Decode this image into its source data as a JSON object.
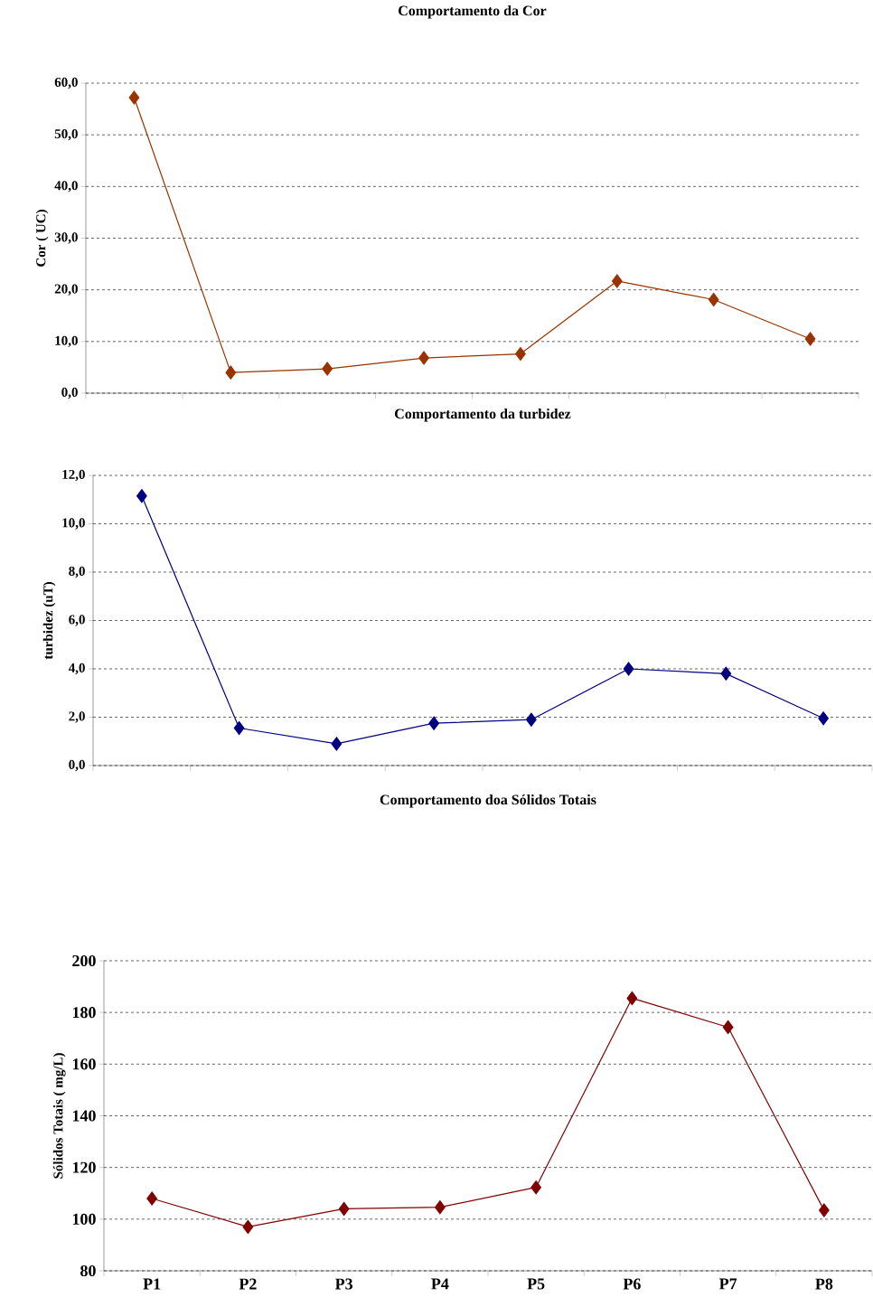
{
  "chart_data": [
    {
      "type": "line",
      "title": "Comportamento da Cor",
      "ylabel": "Cor ( UC)",
      "categories": [
        null,
        null,
        null,
        null,
        null,
        null,
        null,
        null
      ],
      "values": [
        57.2,
        4.0,
        4.7,
        6.8,
        7.6,
        21.7,
        18.1,
        10.5
      ],
      "color": "#993300",
      "ylim": [
        0,
        60
      ],
      "yticks": [
        {
          "value": 0,
          "label": "0,0"
        },
        {
          "value": 10,
          "label": "10,0"
        },
        {
          "value": 20,
          "label": "20,0"
        },
        {
          "value": 30,
          "label": "30,0"
        },
        {
          "value": 40,
          "label": "40,0"
        },
        {
          "value": 50,
          "label": "50,0"
        },
        {
          "value": 60,
          "label": "60,0"
        }
      ],
      "grid": "y",
      "marker": "diamond",
      "line_style": "solid"
    },
    {
      "type": "line",
      "title": "Comportamento da turbidez",
      "ylabel": "turbidez (uT)",
      "categories": [
        null,
        null,
        null,
        null,
        null,
        null,
        null,
        null
      ],
      "values": [
        11.15,
        1.55,
        0.9,
        1.75,
        1.9,
        4.0,
        3.8,
        1.95
      ],
      "color": "#000080",
      "ylim": [
        0,
        12
      ],
      "yticks": [
        {
          "value": 0,
          "label": "0,0"
        },
        {
          "value": 2,
          "label": "2,0"
        },
        {
          "value": 4,
          "label": "4,0"
        },
        {
          "value": 6,
          "label": "6,0"
        },
        {
          "value": 8,
          "label": "8,0"
        },
        {
          "value": 10,
          "label": "10,0"
        },
        {
          "value": 12,
          "label": "12,0"
        }
      ],
      "grid": "y",
      "marker": "diamond",
      "line_style": "solid"
    },
    {
      "type": "line",
      "title": "Comportamento doa Sólidos Totais",
      "ylabel": "Sólidos Totais ( mg/L)",
      "categories": [
        "P1",
        "P2",
        "P3",
        "P4",
        "P5",
        "P6",
        "P7",
        "P8"
      ],
      "values": [
        108,
        97,
        104,
        104.6,
        112.3,
        185.5,
        174.3,
        103.4
      ],
      "color": "#800000",
      "ylim": [
        80,
        200
      ],
      "yticks": [
        80,
        100,
        120,
        140,
        160,
        180,
        200
      ],
      "grid": "y",
      "marker": "diamond",
      "line_style": "solid"
    }
  ]
}
